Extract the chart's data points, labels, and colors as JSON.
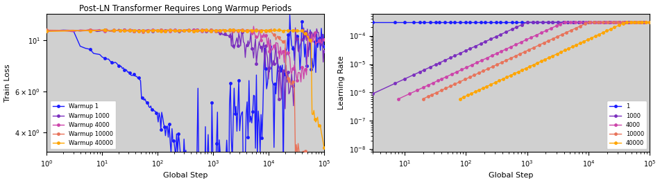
{
  "title": "Post-LN Transformer Requires Long Warmup Periods",
  "warmup_steps": [
    1,
    1000,
    4000,
    10000,
    40000
  ],
  "colors": [
    "#1a1aff",
    "#7B2FBE",
    "#CC44AA",
    "#E8735A",
    "#FFA500"
  ],
  "max_lr": 0.0003,
  "total_steps": 100000,
  "left_ylabel": "Train Loss",
  "right_ylabel": "Learning Rate",
  "xlabel": "Global Step",
  "bg_color": "#D0D0D0",
  "fig_color": "#FFFFFF",
  "marker": "o",
  "markersize": 2.5,
  "linewidth": 1.0,
  "loss_ylim": [
    3.3,
    13
  ],
  "lr_ylim": [
    8e-09,
    0.0006
  ],
  "loss_xlim": [
    1,
    100000
  ],
  "lr_xlim": [
    3,
    100000
  ]
}
